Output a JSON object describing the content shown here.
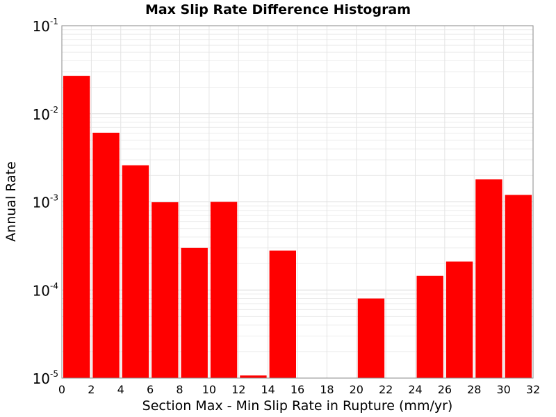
{
  "chart_data": {
    "type": "bar",
    "title": "Max Slip Rate Difference Histogram",
    "xlabel": "Section Max - Min Slip Rate in Rupture (mm/yr)",
    "ylabel": "Annual Rate",
    "xlim": [
      0,
      32
    ],
    "ylim": [
      1e-05,
      0.1
    ],
    "y_scale": "log",
    "grid": true,
    "bar_color": "#ff0000",
    "x_ticks": [
      "0",
      "2",
      "4",
      "6",
      "8",
      "10",
      "12",
      "14",
      "16",
      "18",
      "20",
      "22",
      "24",
      "26",
      "28",
      "30",
      "32"
    ],
    "y_ticks": [
      {
        "base": "10",
        "exp": "-5"
      },
      {
        "base": "10",
        "exp": "-4"
      },
      {
        "base": "10",
        "exp": "-3"
      },
      {
        "base": "10",
        "exp": "-2"
      },
      {
        "base": "10",
        "exp": "-1"
      }
    ],
    "bins": [
      {
        "x0": 0,
        "x1": 2,
        "value": 0.027
      },
      {
        "x0": 2,
        "x1": 4,
        "value": 0.0061
      },
      {
        "x0": 4,
        "x1": 6,
        "value": 0.0026
      },
      {
        "x0": 6,
        "x1": 8,
        "value": 0.00099
      },
      {
        "x0": 8,
        "x1": 10,
        "value": 0.0003
      },
      {
        "x0": 10,
        "x1": 12,
        "value": 0.001
      },
      {
        "x0": 12,
        "x1": 14,
        "value": 1.07e-05
      },
      {
        "x0": 14,
        "x1": 16,
        "value": 0.00028
      },
      {
        "x0": 20,
        "x1": 22,
        "value": 8e-05
      },
      {
        "x0": 24,
        "x1": 26,
        "value": 0.000145
      },
      {
        "x0": 26,
        "x1": 28,
        "value": 0.00021
      },
      {
        "x0": 28,
        "x1": 30,
        "value": 0.0018
      },
      {
        "x0": 30,
        "x1": 32,
        "value": 0.0012
      }
    ]
  }
}
